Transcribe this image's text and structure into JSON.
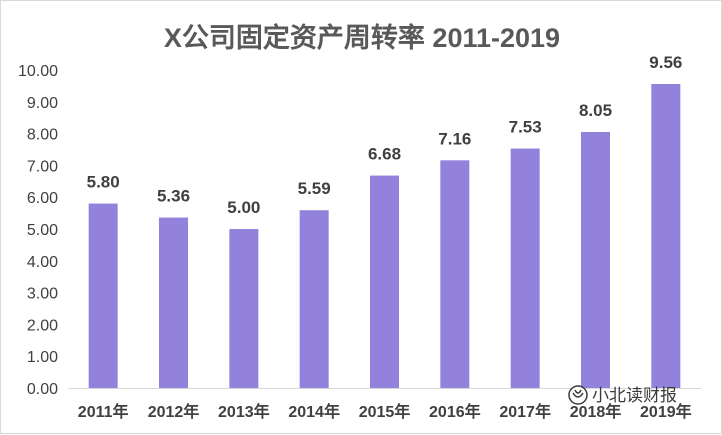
{
  "chart_data": {
    "type": "bar",
    "title": "X公司固定资产周转率 2011-2019",
    "xlabel": "",
    "ylabel": "",
    "categories": [
      "2011年",
      "2012年",
      "2013年",
      "2014年",
      "2015年",
      "2016年",
      "2017年",
      "2018年",
      "2019年"
    ],
    "values": [
      5.8,
      5.36,
      5.0,
      5.59,
      6.68,
      7.16,
      7.53,
      8.05,
      9.56
    ],
    "data_labels": [
      "5.80",
      "5.36",
      "5.00",
      "5.59",
      "6.68",
      "7.16",
      "7.53",
      "8.05",
      "9.56"
    ],
    "ylim": [
      0,
      10
    ],
    "yticks": [
      "0.00",
      "1.00",
      "2.00",
      "3.00",
      "4.00",
      "5.00",
      "6.00",
      "7.00",
      "8.00",
      "9.00",
      "10.00"
    ],
    "grid": false,
    "bar_color": "#9382dc"
  },
  "watermark": {
    "text": "小北读财报",
    "icon": "wechat-channel-icon"
  }
}
